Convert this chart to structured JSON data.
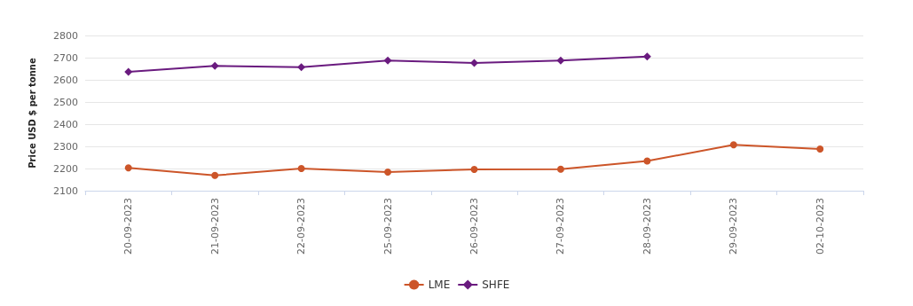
{
  "chart_data": {
    "type": "line",
    "ylabel": "Price USD $ per tonne",
    "categories": [
      "20-09-2023",
      "21-09-2023",
      "22-09-2023",
      "25-09-2023",
      "26-09-2023",
      "27-09-2023",
      "28-09-2023",
      "29-09-2023",
      "02-10-2023"
    ],
    "series": [
      {
        "name": "LME",
        "color": "#cc5529",
        "marker": "circle",
        "values": [
          2203,
          2169,
          2200,
          2184,
          2196,
          2197,
          2234,
          2307,
          2288
        ]
      },
      {
        "name": "SHFE",
        "color": "#6a1b7f",
        "marker": "diamond",
        "values": [
          2636,
          2663,
          2657,
          2687,
          2676,
          2687,
          2705,
          null,
          null
        ]
      }
    ],
    "ylim": [
      2100,
      2800
    ],
    "yticks": [
      2100,
      2200,
      2300,
      2400,
      2500,
      2600,
      2700,
      2800
    ],
    "grid": "y",
    "legend": "bottom"
  }
}
